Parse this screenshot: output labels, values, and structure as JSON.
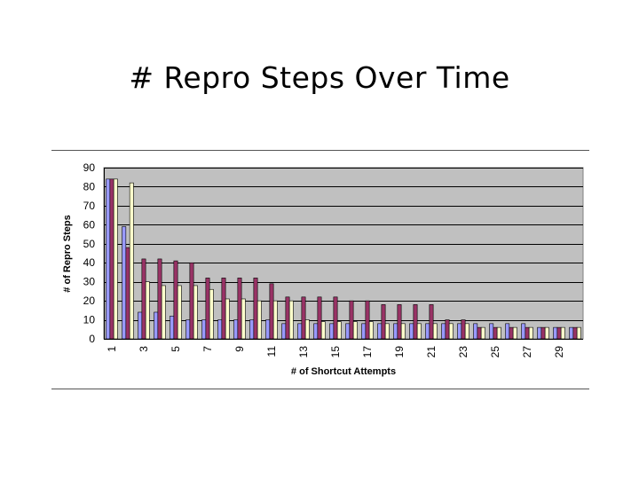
{
  "slide": {
    "title": "# Repro Steps Over Time"
  },
  "chart_data": {
    "type": "bar",
    "title": "",
    "xlabel": "# of Shortcut Attempts",
    "ylabel": "# of Repro Steps",
    "ylim": [
      0,
      90
    ],
    "yticks": [
      0,
      10,
      20,
      30,
      40,
      50,
      60,
      70,
      80,
      90
    ],
    "grid": "horizontal",
    "legend": "none",
    "categories": [
      1,
      2,
      3,
      4,
      5,
      6,
      7,
      8,
      9,
      10,
      11,
      12,
      13,
      14,
      15,
      16,
      17,
      18,
      19,
      20,
      21,
      22,
      23,
      24,
      25,
      26,
      27,
      28,
      29,
      30
    ],
    "category_tick_labels": [
      "1",
      "3",
      "5",
      "7",
      "9",
      "11",
      "13",
      "15",
      "17",
      "19",
      "21",
      "23",
      "25",
      "27",
      "29"
    ],
    "series": [
      {
        "color": "#9999ff",
        "values": [
          84,
          59,
          14,
          14,
          12,
          10,
          10,
          10,
          10,
          10,
          10,
          8,
          8,
          8,
          8,
          8,
          8,
          8,
          8,
          8,
          8,
          8,
          8,
          8,
          8,
          8,
          8,
          6,
          6,
          6
        ]
      },
      {
        "color": "#993366",
        "values": [
          84,
          48,
          42,
          42,
          41,
          40,
          32,
          32,
          32,
          32,
          29,
          22,
          22,
          22,
          22,
          20,
          20,
          18,
          18,
          18,
          18,
          10,
          10,
          6,
          6,
          6,
          6,
          6,
          6,
          6
        ]
      },
      {
        "color": "#ffffcc",
        "values": [
          84,
          82,
          30,
          28,
          28,
          28,
          26,
          21,
          21,
          20,
          20,
          20,
          10,
          9,
          9,
          9,
          9,
          8,
          8,
          8,
          8,
          8,
          8,
          6,
          6,
          6,
          6,
          6,
          6,
          6
        ]
      }
    ],
    "colors": {
      "plot_area": "#c0c0c0",
      "gridline": "#000000",
      "bar_outline": "#000000"
    }
  }
}
